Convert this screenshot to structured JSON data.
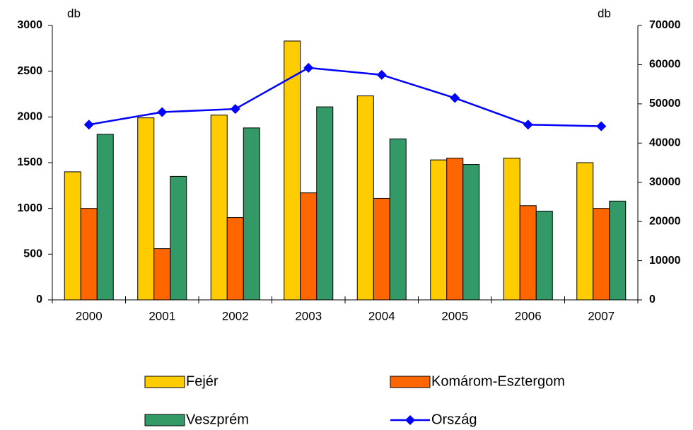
{
  "chart_data": {
    "type": "bar_line",
    "y_unit": "db",
    "y2_unit": "db",
    "categories": [
      "2000",
      "2001",
      "2002",
      "2003",
      "2004",
      "2005",
      "2006",
      "2007"
    ],
    "series": [
      {
        "name": "Fejér",
        "color": "#ffcc00",
        "values": [
          1400,
          1990,
          2020,
          2830,
          2230,
          1530,
          1550,
          1500
        ]
      },
      {
        "name": "Komárom-Esztergom",
        "color": "#ff6600",
        "values": [
          1000,
          560,
          900,
          1170,
          1110,
          1550,
          1030,
          1000
        ]
      },
      {
        "name": "Veszprém",
        "color": "#339966",
        "values": [
          1810,
          1350,
          1880,
          2110,
          1760,
          1480,
          970,
          1080
        ]
      },
      {
        "name": "Ország",
        "color": "#0000ff",
        "axis": "y2",
        "values": [
          44700,
          47900,
          48700,
          59200,
          57400,
          51500,
          44700,
          44300
        ]
      }
    ],
    "ylim": [
      0,
      3000
    ],
    "yticks": [
      0,
      500,
      1000,
      1500,
      2000,
      2500,
      3000
    ],
    "y2lim": [
      0,
      70000
    ],
    "y2ticks": [
      0,
      10000,
      20000,
      30000,
      40000,
      50000,
      60000,
      70000
    ]
  }
}
